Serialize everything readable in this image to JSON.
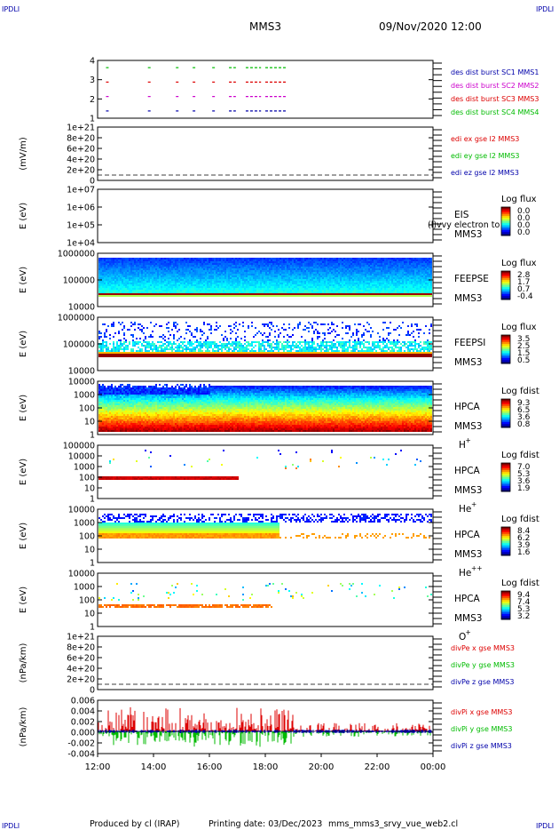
{
  "header": {
    "corner_tl": "IPDLI",
    "corner_tr": "IPDLI",
    "corner_bl": "IPDLI",
    "corner_br": "IPDLI",
    "spacecraft": "MMS3",
    "datetime": "09/Nov/2020 12:00"
  },
  "footer": {
    "produced_by": "Produced by cl (IRAP)",
    "printing_date": "Printing date: 03/Dec/2023",
    "file_name": "mms_mms3_srvy_vue_web2.cl"
  },
  "colors": {
    "red": "#dd0000",
    "green": "#00bb00",
    "blue": "#0000aa",
    "magenta": "#cc00cc",
    "label_blue": "#0000aa"
  },
  "chart_data": [
    {
      "type": "line",
      "id": "burst",
      "ylabel": "",
      "yticks": [
        "1",
        "2",
        "3",
        "4"
      ],
      "ylim": [
        0.5,
        4.5
      ],
      "xlim": [
        12,
        24
      ],
      "series": [
        {
          "name": "des dist burst SC1 MMS1",
          "color": "#0000aa",
          "y": 1,
          "segments": [
            [
              12.3,
              12.4
            ],
            [
              13.8,
              13.85
            ],
            [
              14.8,
              14.85
            ],
            [
              15.4,
              15.45
            ],
            [
              16.1,
              16.15
            ],
            [
              16.7,
              16.9
            ],
            [
              17.3,
              17.8
            ],
            [
              18.0,
              18.7
            ]
          ]
        },
        {
          "name": "des dist burst SC2 MMS2",
          "color": "#cc00cc",
          "y": 2,
          "segments": [
            [
              12.3,
              12.4
            ],
            [
              13.8,
              13.85
            ],
            [
              14.8,
              14.85
            ],
            [
              15.4,
              15.45
            ],
            [
              16.1,
              16.15
            ],
            [
              16.7,
              16.9
            ],
            [
              17.3,
              17.8
            ],
            [
              18.0,
              18.7
            ]
          ]
        },
        {
          "name": "des dist burst SC3 MMS3",
          "color": "#dd0000",
          "y": 3,
          "segments": [
            [
              12.3,
              12.4
            ],
            [
              13.8,
              13.85
            ],
            [
              14.8,
              14.85
            ],
            [
              15.4,
              15.45
            ],
            [
              16.1,
              16.15
            ],
            [
              16.7,
              16.9
            ],
            [
              17.3,
              17.8
            ],
            [
              18.0,
              18.7
            ]
          ]
        },
        {
          "name": "des dist burst SC4 MMS4",
          "color": "#00bb00",
          "y": 4,
          "segments": [
            [
              12.3,
              12.4
            ],
            [
              13.8,
              13.85
            ],
            [
              14.8,
              14.85
            ],
            [
              15.4,
              15.45
            ],
            [
              16.1,
              16.15
            ],
            [
              16.7,
              16.9
            ],
            [
              17.3,
              17.8
            ],
            [
              18.0,
              18.7
            ]
          ]
        }
      ]
    },
    {
      "type": "line",
      "id": "edi",
      "ylabel": "(mV/m)",
      "yticks": [
        "0",
        "2e+20",
        "4e+20",
        "6e+20",
        "8e+20",
        "1e+21"
      ],
      "ylim": [
        -0.3,
        1.05
      ],
      "zero_line": true,
      "series": [
        {
          "name": "edi ex gse l2 MMS3",
          "color": "#dd0000"
        },
        {
          "name": "edi ey gse l2 MMS3",
          "color": "#00bb00"
        },
        {
          "name": "edi ez gse l2 MMS3",
          "color": "#0000aa"
        }
      ]
    },
    {
      "type": "heatmap",
      "id": "eis",
      "ylabel": "E (eV)",
      "yticks": [
        "1e+04",
        "1e+05",
        "1e+06",
        "1e+07"
      ],
      "instrument": "EIS",
      "spacecraft": "MMS3",
      "species_note": "(l)vvy electron to",
      "colorbar_title": "Log flux",
      "colorbar_ticks": [
        "0.0",
        "0.0",
        "0.0",
        "0.0"
      ],
      "pattern": "empty"
    },
    {
      "type": "heatmap",
      "id": "feeps_e",
      "ylabel": "E (eV)",
      "yticks": [
        "10000",
        "100000",
        "1000000"
      ],
      "instrument": "FEEPSE",
      "spacecraft": "MMS3",
      "colorbar_title": "Log flux",
      "colorbar_ticks": [
        "2.8",
        "1.7",
        "0.7",
        "-0.4"
      ],
      "pattern": "feeps_e"
    },
    {
      "type": "heatmap",
      "id": "feeps_i",
      "ylabel": "E (eV)",
      "yticks": [
        "10000",
        "100000",
        "1000000"
      ],
      "instrument": "FEEPSI",
      "spacecraft": "MMS3",
      "colorbar_title": "Log flux",
      "colorbar_ticks": [
        "3.5",
        "2.5",
        "1.5",
        "0.5"
      ],
      "pattern": "feeps_i"
    },
    {
      "type": "heatmap",
      "id": "hpca_h",
      "ylabel": "E (eV)",
      "yticks": [
        "1",
        "10",
        "100",
        "1000",
        "10000"
      ],
      "instrument": "HPCA",
      "spacecraft": "MMS3",
      "species": "H",
      "species_sup": "+",
      "colorbar_title": "Log fdist",
      "colorbar_ticks": [
        "9.3",
        "6.5",
        "3.6",
        "0.8"
      ],
      "pattern": "hpca_h"
    },
    {
      "type": "heatmap",
      "id": "hpca_he",
      "ylabel": "E (eV)",
      "yticks": [
        "1",
        "10",
        "100",
        "1000",
        "10000",
        "100000"
      ],
      "instrument": "HPCA",
      "spacecraft": "MMS3",
      "species": "He",
      "species_sup": "+",
      "colorbar_title": "Log fdist",
      "colorbar_ticks": [
        "7.0",
        "5.3",
        "3.6",
        "1.9"
      ],
      "pattern": "hpca_he"
    },
    {
      "type": "heatmap",
      "id": "hpca_hepp",
      "ylabel": "E (eV)",
      "yticks": [
        "1",
        "10",
        "100",
        "1000",
        "10000"
      ],
      "instrument": "HPCA",
      "spacecraft": "MMS3",
      "species": "He",
      "species_sup": "++",
      "colorbar_title": "Log fdist",
      "colorbar_ticks": [
        "8.4",
        "6.2",
        "3.9",
        "1.6"
      ],
      "pattern": "hpca_hepp"
    },
    {
      "type": "heatmap",
      "id": "hpca_o",
      "ylabel": "E (eV)",
      "yticks": [
        "1",
        "10",
        "100",
        "1000",
        "10000"
      ],
      "instrument": "HPCA",
      "spacecraft": "MMS3",
      "species": "O",
      "species_sup": "+",
      "colorbar_title": "Log fdist",
      "colorbar_ticks": [
        "9.4",
        "7.4",
        "5.3",
        "3.2"
      ],
      "pattern": "hpca_o"
    },
    {
      "type": "line",
      "id": "divpe",
      "ylabel": "(nPa/km)",
      "yticks": [
        "0",
        "2e+20",
        "4e+20",
        "6e+20",
        "8e+20",
        "1e+21"
      ],
      "ylim": [
        -0.3,
        1.05
      ],
      "zero_line": true,
      "series": [
        {
          "name": "divPe x gse MMS3",
          "color": "#dd0000"
        },
        {
          "name": "divPe y gse MMS3",
          "color": "#00bb00"
        },
        {
          "name": "divPe z gse MMS3",
          "color": "#0000aa"
        }
      ]
    },
    {
      "type": "line",
      "id": "divpi",
      "ylabel": "(nPa/km)",
      "yticks": [
        "-0.004",
        "-0.002",
        "0.000",
        "0.002",
        "0.004",
        "0.006"
      ],
      "ylim": [
        -0.005,
        0.007
      ],
      "series": [
        {
          "name": "divPi x gse MMS3",
          "color": "#dd0000"
        },
        {
          "name": "divPi y gse MMS3",
          "color": "#00bb00"
        },
        {
          "name": "divPi z gse MMS3",
          "color": "#0000aa"
        }
      ]
    }
  ],
  "xaxis": {
    "ticks": [
      "12:00",
      "14:00",
      "16:00",
      "18:00",
      "20:00",
      "22:00",
      "00:00"
    ],
    "xlim": [
      12,
      24
    ]
  }
}
